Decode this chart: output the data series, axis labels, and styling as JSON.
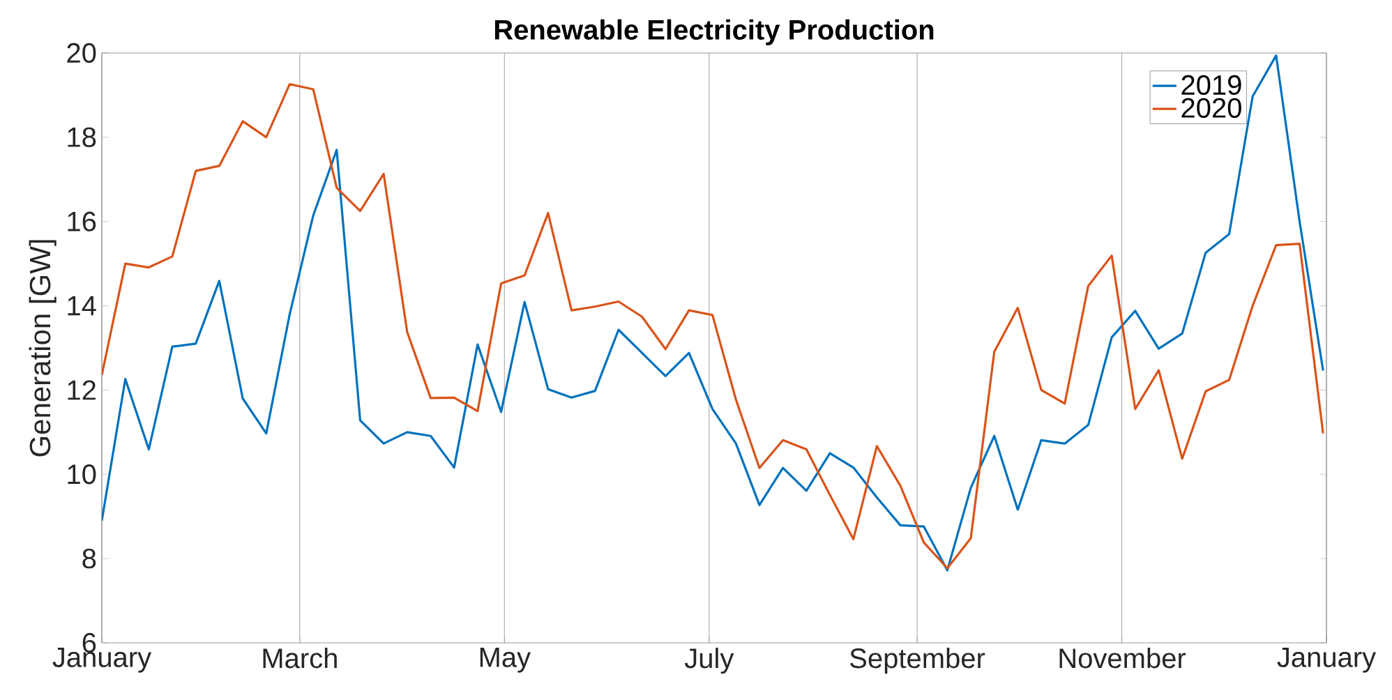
{
  "chart_data": {
    "type": "line",
    "title": "Renewable Electricity Production",
    "ylabel": "Generation [GW]",
    "x": [
      "2019-01-01",
      "2019-01-08",
      "2019-01-15",
      "2019-01-22",
      "2019-01-29",
      "2019-02-05",
      "2019-02-12",
      "2019-02-19",
      "2019-02-26",
      "2019-03-05",
      "2019-03-12",
      "2019-03-19",
      "2019-03-26",
      "2019-04-02",
      "2019-04-09",
      "2019-04-16",
      "2019-04-23",
      "2019-04-30",
      "2019-05-07",
      "2019-05-14",
      "2019-05-21",
      "2019-05-28",
      "2019-06-04",
      "2019-06-11",
      "2019-06-18",
      "2019-06-25",
      "2019-07-02",
      "2019-07-09",
      "2019-07-16",
      "2019-07-23",
      "2019-07-30",
      "2019-08-06",
      "2019-08-13",
      "2019-08-20",
      "2019-08-27",
      "2019-09-03",
      "2019-09-10",
      "2019-09-17",
      "2019-09-24",
      "2019-10-01",
      "2019-10-08",
      "2019-10-15",
      "2019-10-22",
      "2019-10-29",
      "2019-11-05",
      "2019-11-12",
      "2019-11-19",
      "2019-11-26",
      "2019-12-03",
      "2019-12-10",
      "2019-12-17",
      "2019-12-24",
      "2019-12-31"
    ],
    "series": [
      {
        "name": "2019",
        "color": "#0072bd",
        "values": [
          8.9,
          12.26,
          10.59,
          13.03,
          13.1,
          14.59,
          11.8,
          10.97,
          13.8,
          16.14,
          17.7,
          11.28,
          10.73,
          11.0,
          10.91,
          10.16,
          13.08,
          11.48,
          14.09,
          12.02,
          11.82,
          11.98,
          13.43,
          12.88,
          12.33,
          12.88,
          11.55,
          10.73,
          9.27,
          10.15,
          9.61,
          10.5,
          10.16,
          9.45,
          8.79,
          8.76,
          7.72,
          9.68,
          10.91,
          9.16,
          10.81,
          10.73,
          11.17,
          13.25,
          13.88,
          12.98,
          13.34,
          15.26,
          15.7,
          18.97,
          19.94,
          16.0,
          12.46
        ]
      },
      {
        "name": "2020",
        "color": "#d95319",
        "values": [
          12.36,
          15.0,
          14.91,
          15.17,
          17.2,
          17.32,
          18.38,
          18.0,
          19.26,
          19.14,
          16.8,
          16.25,
          17.13,
          13.38,
          11.81,
          11.82,
          11.5,
          14.53,
          14.72,
          16.2,
          13.89,
          13.98,
          14.1,
          13.74,
          12.97,
          13.89,
          13.78,
          11.77,
          10.15,
          10.81,
          10.59,
          9.51,
          8.46,
          10.67,
          9.73,
          8.38,
          7.77,
          8.48,
          12.91,
          13.95,
          12.0,
          11.68,
          14.47,
          15.19,
          11.55,
          12.47,
          10.37,
          11.97,
          12.24,
          14.0,
          15.44,
          15.47,
          10.97
        ]
      }
    ],
    "xlim": [
      "2019-01-01",
      "2020-01-01"
    ],
    "xticks": [
      {
        "value": "2019-01-01",
        "label": "January"
      },
      {
        "value": "2019-03-01",
        "label": "March"
      },
      {
        "value": "2019-05-01",
        "label": "May"
      },
      {
        "value": "2019-07-01",
        "label": "July"
      },
      {
        "value": "2019-09-01",
        "label": "September"
      },
      {
        "value": "2019-11-01",
        "label": "November"
      },
      {
        "value": "2020-01-01",
        "label": "January"
      }
    ],
    "ylim": [
      6,
      20
    ],
    "yticks": [
      6,
      8,
      10,
      12,
      14,
      16,
      18,
      20
    ],
    "grid": "x",
    "legend": "top right",
    "line_style": "solid"
  }
}
